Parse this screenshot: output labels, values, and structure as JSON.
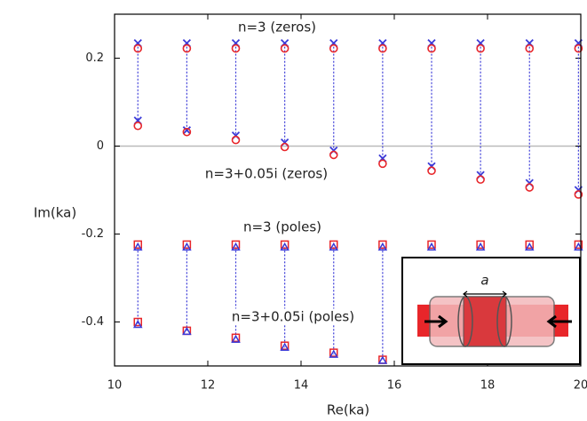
{
  "chart_data": {
    "type": "scatter",
    "xlabel": "Re(ka)",
    "ylabel": "Im(ka)",
    "xlim": [
      10,
      20
    ],
    "ylim": [
      -0.5,
      0.3
    ],
    "xticks": [
      10,
      12,
      14,
      16,
      18,
      20
    ],
    "yticks": [
      -0.4,
      -0.2,
      0,
      0.2
    ],
    "zero_line": true,
    "annotations": [
      "n=3 (zeros)",
      "n=3+0.05i (zeros)",
      "n=3 (poles)",
      "n=3+0.05i (poles)"
    ],
    "inset_label": "a",
    "series": [
      {
        "marker": "cross",
        "color": "#3a3ad8",
        "x": [
          10.5,
          11.55,
          12.6,
          13.65,
          14.7,
          15.75,
          16.8,
          17.85,
          18.9,
          19.95
        ],
        "values": [
          0.234,
          0.234,
          0.234,
          0.234,
          0.234,
          0.234,
          0.234,
          0.234,
          0.234,
          0.234
        ]
      },
      {
        "marker": "circle",
        "color": "#e8262a",
        "x": [
          10.5,
          11.55,
          12.6,
          13.65,
          14.7,
          15.75,
          16.8,
          17.85,
          18.9,
          19.95
        ],
        "values": [
          0.222,
          0.222,
          0.222,
          0.222,
          0.222,
          0.222,
          0.222,
          0.222,
          0.222,
          0.222
        ]
      },
      {
        "marker": "cross",
        "color": "#3a3ad8",
        "x": [
          10.5,
          11.55,
          12.6,
          13.65,
          14.7,
          15.75,
          16.8,
          17.85,
          18.9,
          19.95
        ],
        "values": [
          0.058,
          0.036,
          0.024,
          0.008,
          -0.01,
          -0.028,
          -0.046,
          -0.066,
          -0.084,
          -0.1
        ]
      },
      {
        "marker": "circle",
        "color": "#e8262a",
        "x": [
          10.5,
          11.55,
          12.6,
          13.65,
          14.7,
          15.75,
          16.8,
          17.85,
          18.9,
          19.95
        ],
        "values": [
          0.046,
          0.032,
          0.014,
          -0.002,
          -0.02,
          -0.04,
          -0.056,
          -0.076,
          -0.094,
          -0.11
        ]
      },
      {
        "marker": "square",
        "color": "#e8262a",
        "x": [
          10.5,
          11.55,
          12.6,
          13.65,
          14.7,
          15.75,
          16.8,
          17.85,
          18.9,
          19.95
        ],
        "values": [
          -0.224,
          -0.224,
          -0.224,
          -0.224,
          -0.224,
          -0.224,
          -0.224,
          -0.224,
          -0.224,
          -0.224
        ]
      },
      {
        "marker": "triangle",
        "color": "#3a3ad8",
        "x": [
          10.5,
          11.55,
          12.6,
          13.65,
          14.7,
          15.75,
          16.8,
          17.85,
          18.9,
          19.95
        ],
        "values": [
          -0.23,
          -0.23,
          -0.23,
          -0.23,
          -0.23,
          -0.23,
          -0.23,
          -0.23,
          -0.23,
          -0.23
        ]
      },
      {
        "marker": "square",
        "color": "#e8262a",
        "x": [
          10.5,
          11.55,
          12.6,
          13.65,
          14.7,
          15.75
        ],
        "values": [
          -0.4,
          -0.42,
          -0.436,
          -0.454,
          -0.47,
          -0.486
        ]
      },
      {
        "marker": "triangle",
        "color": "#3a3ad8",
        "x": [
          10.5,
          11.55,
          12.6,
          13.65,
          14.7,
          15.75
        ],
        "values": [
          -0.406,
          -0.422,
          -0.44,
          -0.458,
          -0.474,
          -0.488
        ]
      }
    ]
  }
}
